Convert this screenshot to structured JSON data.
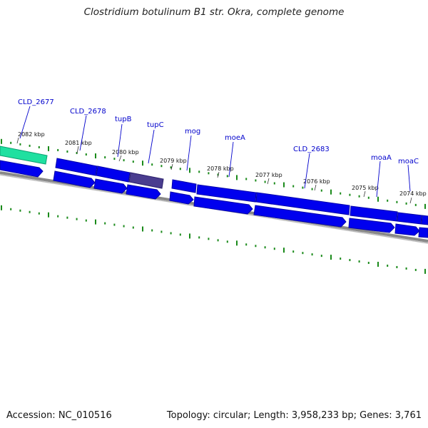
{
  "title": "Clostridium botulinum B1 str. Okra, complete genome",
  "footer": {
    "accession": "Accession: NC_010516",
    "summary": "Topology: circular; Length: 3,958,233 bp; Genes: 3,761"
  },
  "colors": {
    "gene_blue": "#0000ee",
    "gene_highlight": "#1fe0a0",
    "gene_shaded": "#4a3d8f",
    "tick_green": "#1a8a1a",
    "label_blue": "#0000cc",
    "backbone": "#888888"
  },
  "kbp_labels": [
    "2082 kbp",
    "2081 kbp",
    "2080 kbp",
    "2079 kbp",
    "2078 kbp",
    "2077 kbp",
    "2076 kbp",
    "2075 kbp",
    "2074 kbp"
  ],
  "gene_labels": [
    "CLD_2677",
    "CLD_2678",
    "tupB",
    "tupC",
    "mog",
    "moeA",
    "CLD_2683",
    "moaA",
    "moaC"
  ]
}
